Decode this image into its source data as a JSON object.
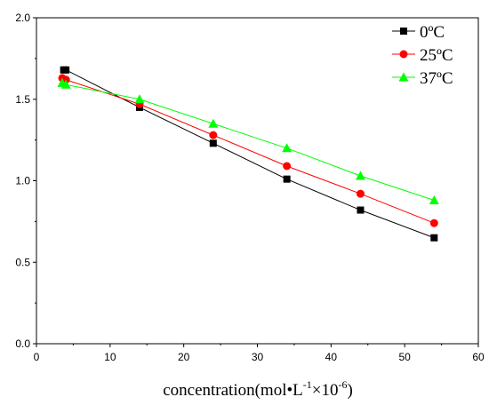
{
  "chart_data": {
    "type": "line",
    "title": "",
    "xlabel": {
      "main": "concentration(mol•L",
      "sup1": "-1",
      "mid": "×10",
      "sup2": "-6",
      "tail": ")"
    },
    "ylabel": "",
    "xlim": [
      0,
      60
    ],
    "ylim": [
      0.0,
      2.0
    ],
    "x_ticks": [
      "0",
      "10",
      "20",
      "30",
      "40",
      "50",
      "60"
    ],
    "y_ticks": [
      "0.0",
      "0.5",
      "1.0",
      "1.5",
      "2.0"
    ],
    "grid": false,
    "legend_position": "top-right",
    "series": [
      {
        "name": "0ºC",
        "color": "#000000",
        "marker": "square",
        "x": [
          3.7,
          4.0,
          14.0,
          24.0,
          34.0,
          44.0,
          54.0
        ],
        "y": [
          1.68,
          1.68,
          1.45,
          1.23,
          1.01,
          0.82,
          0.65
        ]
      },
      {
        "name": "25ºC",
        "color": "#ff0000",
        "marker": "circle",
        "x": [
          3.5,
          4.0,
          14.0,
          24.0,
          34.0,
          44.0,
          54.0
        ],
        "y": [
          1.63,
          1.62,
          1.47,
          1.28,
          1.09,
          0.92,
          0.74
        ]
      },
      {
        "name": "37ºC",
        "color": "#00ff00",
        "marker": "triangle",
        "x": [
          3.5,
          4.0,
          14.0,
          24.0,
          34.0,
          44.0,
          54.0
        ],
        "y": [
          1.6,
          1.59,
          1.5,
          1.35,
          1.2,
          1.03,
          0.88
        ]
      }
    ]
  }
}
